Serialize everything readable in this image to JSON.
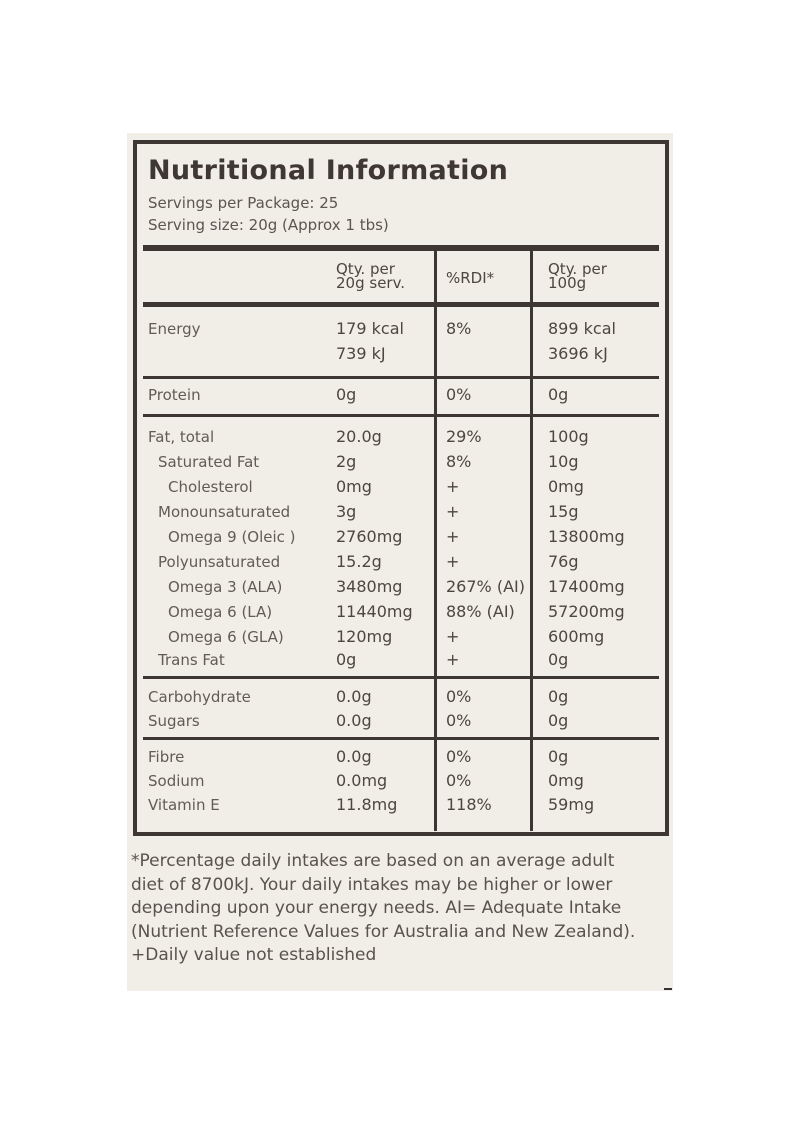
{
  "title": "Nutritional Information",
  "servings_per_package": "Servings per Package: 25",
  "serving_size": "Serving size: 20g (Approx 1 tbs)",
  "headers": {
    "per_serving_line1": "Qty. per",
    "per_serving_line2": "20g serv.",
    "rdi": "%RDI*",
    "per_100_line1": "Qty. per",
    "per_100_line2": "100g"
  },
  "rows": [
    {
      "label": "Energy",
      "indent": 0,
      "serving": "179 kcal",
      "rdi": "8%",
      "per100": "899 kcal"
    },
    {
      "label": "",
      "indent": 0,
      "serving": "739 kJ",
      "rdi": "",
      "per100": "3696 kJ"
    },
    {
      "label": "Protein",
      "indent": 0,
      "serving": "0g",
      "rdi": "0%",
      "per100": "0g"
    },
    {
      "label": "Fat, total",
      "indent": 0,
      "serving": "20.0g",
      "rdi": "29%",
      "per100": "100g"
    },
    {
      "label": "Saturated Fat",
      "indent": 1,
      "serving": "2g",
      "rdi": "8%",
      "per100": "10g"
    },
    {
      "label": "Cholesterol",
      "indent": 2,
      "serving": "0mg",
      "rdi": "+",
      "per100": "0mg"
    },
    {
      "label": "Monounsaturated",
      "indent": 1,
      "serving": "3g",
      "rdi": "+",
      "per100": "15g"
    },
    {
      "label": "Omega 9 (Oleic )",
      "indent": 2,
      "serving": "2760mg",
      "rdi": "+",
      "per100": "13800mg"
    },
    {
      "label": "Polyunsaturated",
      "indent": 1,
      "serving": "15.2g",
      "rdi": "+",
      "per100": "76g"
    },
    {
      "label": "Omega 3 (ALA)",
      "indent": 2,
      "serving": "3480mg",
      "rdi": "267% (AI)",
      "per100": "17400mg"
    },
    {
      "label": "Omega 6 (LA)",
      "indent": 2,
      "serving": "11440mg",
      "rdi": "88% (AI)",
      "per100": "57200mg"
    },
    {
      "label": "Omega 6 (GLA)",
      "indent": 2,
      "serving": "120mg",
      "rdi": "+",
      "per100": "600mg"
    },
    {
      "label": "Trans Fat",
      "indent": 1,
      "serving": "0g",
      "rdi": "+",
      "per100": "0g"
    },
    {
      "label": "Carbohydrate",
      "indent": 0,
      "serving": "0.0g",
      "rdi": "0%",
      "per100": "0g"
    },
    {
      "label": "Sugars",
      "indent": 0,
      "serving": "0.0g",
      "rdi": "0%",
      "per100": "0g"
    },
    {
      "label": "Fibre",
      "indent": 0,
      "serving": "0.0g",
      "rdi": "0%",
      "per100": "0g"
    },
    {
      "label": "Sodium",
      "indent": 0,
      "serving": "0.0mg",
      "rdi": "0%",
      "per100": "0mg"
    },
    {
      "label": "Vitamin E",
      "indent": 0,
      "serving": "11.8mg",
      "rdi": "118%",
      "per100": "59mg"
    }
  ],
  "footnote": "*Percentage daily intakes are based on an average adult diet of 8700kJ. Your daily intakes may be higher or lower depending upon your energy needs. AI= Adequate Intake (Nutrient Reference Values for Australia and New Zealand).",
  "footnote2": "+Daily value not established",
  "colors": {
    "label_background": "#f0eee6",
    "rules": "#3e3632",
    "text": "#4e4641"
  }
}
